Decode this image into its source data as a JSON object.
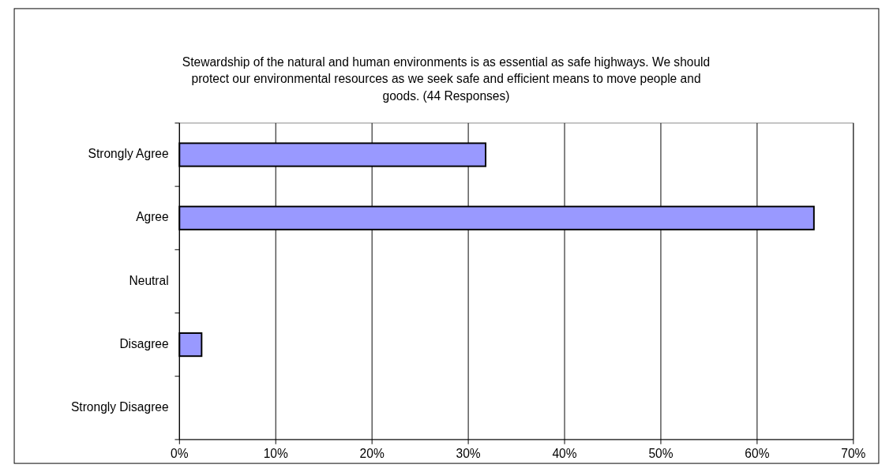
{
  "chart_data": {
    "type": "bar",
    "orientation": "horizontal",
    "title": "Stewardship of the natural and human environments is as essential as safe highways. We should protect our environmental resources as we seek safe and efficient means to move people and goods. (44 Responses)",
    "categories": [
      "Strongly Agree",
      "Agree",
      "Neutral",
      "Disagree",
      "Strongly Disagree"
    ],
    "values": [
      31.8,
      65.9,
      0,
      2.3,
      0
    ],
    "color": "#9999ff",
    "xlim": [
      0,
      70
    ],
    "xticks": [
      {
        "value": 0,
        "label": "0%"
      },
      {
        "value": 10,
        "label": "10%"
      },
      {
        "value": 20,
        "label": "20%"
      },
      {
        "value": 30,
        "label": "30%"
      },
      {
        "value": 40,
        "label": "40%"
      },
      {
        "value": 50,
        "label": "50%"
      },
      {
        "value": 60,
        "label": "60%"
      },
      {
        "value": 70,
        "label": "70%"
      }
    ],
    "grid": "x"
  }
}
